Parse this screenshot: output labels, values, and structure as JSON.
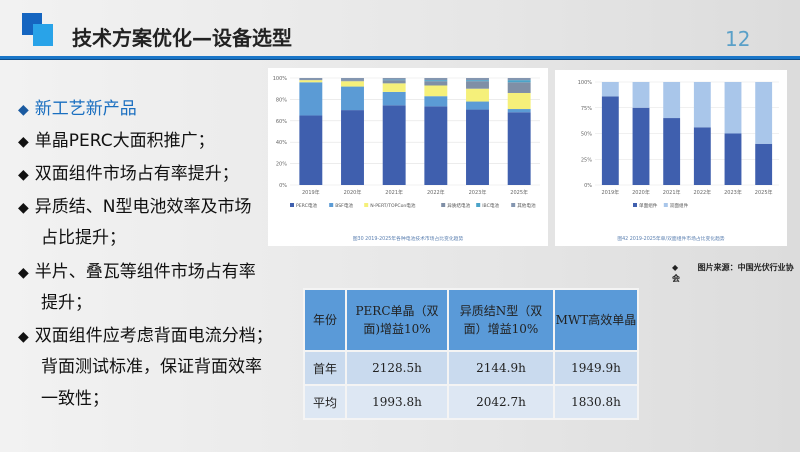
{
  "header": {
    "title": "技术方案优化—设备选型",
    "page_number": "12"
  },
  "bullets": [
    {
      "text": "新工艺新产品",
      "style": "head"
    },
    {
      "text": "单晶PERC大面积推广；"
    },
    {
      "text": "双面组件市场占有率提升；"
    },
    {
      "text": "异质结、N型电池效率及市场",
      "cont": "占比提升；"
    },
    {
      "text": "半片、叠瓦等组件市场占有率",
      "cont": "提升；"
    },
    {
      "text": "双面组件应考虑背面电流分档；",
      "cont": "背面测试标准，保证背面效率",
      "cont2": "一致性；"
    }
  ],
  "source_note": "图片来源：中国光伏行业协会",
  "table": {
    "headers": [
      "年份",
      "PERC单晶（双面)增益10%",
      "异质结N型（双面）增益10%",
      "MWT高效单晶"
    ],
    "rows": [
      [
        "首年",
        "2128.5h",
        "2144.9h",
        "1949.9h"
      ],
      [
        "平均",
        "1993.8h",
        "2042.7h",
        "1830.8h"
      ]
    ]
  },
  "chart_data": [
    {
      "type": "bar",
      "stacked": true,
      "title": "图30 2019-2025年各种电池技术市场占比变化趋势",
      "categories": [
        "2019年",
        "2020年",
        "2021年",
        "2022年",
        "2023年",
        "2025年"
      ],
      "ylim": [
        0,
        100
      ],
      "yticks": [
        "0%",
        "20%",
        "40%",
        "60%",
        "80%",
        "100%"
      ],
      "legend": "bottom",
      "series": [
        {
          "name": "PERC电池",
          "color": "#3f5fae",
          "values": [
            65,
            70,
            74.5,
            73.5,
            70.5,
            68
          ]
        },
        {
          "name": "BSF电池",
          "color": "#5b9bd5",
          "values": [
            31,
            22,
            12.5,
            9.5,
            7.5,
            3
          ]
        },
        {
          "name": "N-PERT/TOPCon电池",
          "color": "#f5f07a",
          "values": [
            2,
            5,
            8,
            10,
            12,
            15
          ]
        },
        {
          "name": "异质结电池",
          "color": "#7f8fa6",
          "values": [
            1,
            1,
            3,
            4,
            7,
            10
          ]
        },
        {
          "name": "IBC电池",
          "color": "#4ba3c8",
          "values": [
            0,
            0,
            0.5,
            1,
            1,
            2
          ]
        },
        {
          "name": "其他电池",
          "color": "#8496b0",
          "values": [
            1,
            2,
            1.5,
            2,
            2,
            2
          ]
        }
      ]
    },
    {
      "type": "bar",
      "stacked": true,
      "title": "图42 2019-2025年单/双面组件市场占比变化趋势",
      "categories": [
        "2019年",
        "2020年",
        "2021年",
        "2022年",
        "2023年",
        "2025年"
      ],
      "ylim": [
        0,
        100
      ],
      "yticks": [
        "0%",
        "25%",
        "50%",
        "75%",
        "100%"
      ],
      "legend": "bottom",
      "series": [
        {
          "name": "单面组件",
          "color": "#3f5fae",
          "values": [
            86,
            75,
            65,
            56,
            50,
            40
          ]
        },
        {
          "name": "双面组件",
          "color": "#a9c6ea",
          "values": [
            14,
            25,
            35,
            44,
            50,
            60
          ]
        }
      ]
    }
  ]
}
